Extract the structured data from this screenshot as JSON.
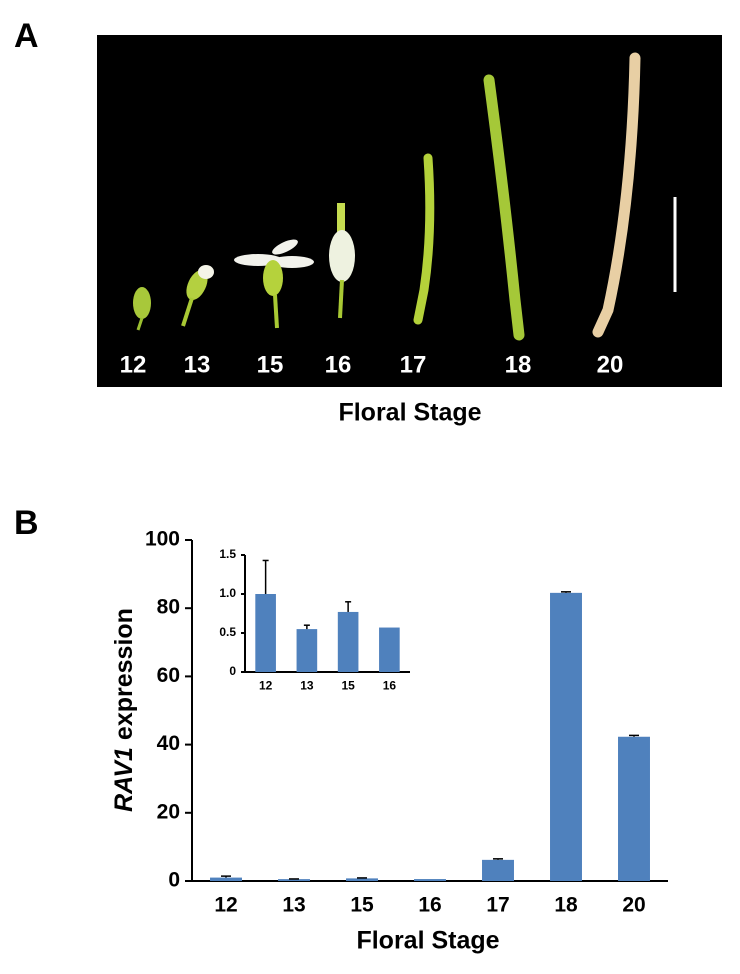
{
  "panel_labels": [
    "A",
    "B"
  ],
  "photo": {
    "stages": [
      "12",
      "13",
      "15",
      "16",
      "17",
      "18",
      "20"
    ],
    "caption": "Floral Stage"
  },
  "chart_data": [
    {
      "type": "bar",
      "categories": [
        "12",
        "13",
        "15",
        "16",
        "17",
        "18",
        "20"
      ],
      "values": [
        1.0,
        0.55,
        0.77,
        0.57,
        6.2,
        84.5,
        42.3
      ],
      "errors": [
        0.43,
        0.05,
        0.13,
        0,
        0.3,
        0.3,
        0.4
      ],
      "color": "#4f81bd",
      "ylim": [
        0,
        100
      ],
      "yticks": [
        0,
        20,
        40,
        60,
        80,
        100
      ],
      "x_label": "Floral Stage",
      "y_label": [
        "RAV1",
        "expression"
      ]
    },
    {
      "type": "bar",
      "categories": [
        "12",
        "13",
        "15",
        "16"
      ],
      "values": [
        1.0,
        0.55,
        0.77,
        0.57
      ],
      "errors": [
        0.43,
        0.05,
        0.13,
        0
      ],
      "color": "#4f81bd",
      "ylim": [
        0,
        1.5
      ],
      "yticks": [
        0,
        0.5,
        {
          "value": 1,
          "label": "1.0"
        },
        1.5
      ]
    }
  ]
}
